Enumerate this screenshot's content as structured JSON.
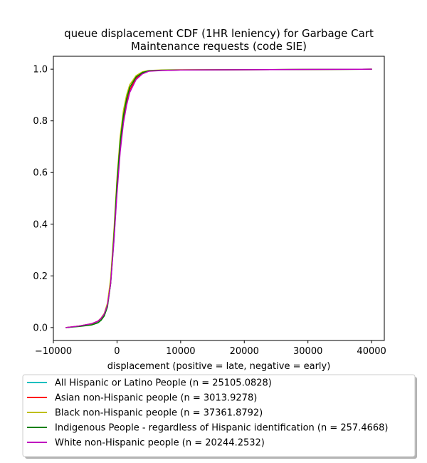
{
  "chart_data": {
    "type": "line",
    "title_lines": [
      "queue displacement CDF (1HR leniency) for Garbage Cart",
      "Maintenance  requests (code SIE)"
    ],
    "xlabel": "displacement (positive = late, negative = early)",
    "ylabel": "",
    "xlim": [
      -10000,
      42000
    ],
    "ylim": [
      -0.05,
      1.05
    ],
    "xticks": [
      -10000,
      0,
      10000,
      20000,
      30000,
      40000
    ],
    "xtick_labels": [
      "−10000",
      "0",
      "10000",
      "20000",
      "30000",
      "40000"
    ],
    "yticks": [
      0.0,
      0.2,
      0.4,
      0.6,
      0.8,
      1.0
    ],
    "ytick_labels": [
      "0.0",
      "0.2",
      "0.4",
      "0.6",
      "0.8",
      "1.0"
    ],
    "grid": false,
    "legend_position": "below plot",
    "series": [
      {
        "name": "All Hispanic or Latino People (n = 25105.0828)",
        "color": "#00bfbf",
        "x": [
          -8000,
          -6000,
          -4000,
          -3000,
          -2500,
          -2000,
          -1500,
          -1000,
          -500,
          0,
          500,
          1000,
          1500,
          2000,
          3000,
          4000,
          5000,
          7000,
          10000,
          20000,
          30000,
          40000
        ],
        "y": [
          0.0,
          0.005,
          0.012,
          0.022,
          0.033,
          0.05,
          0.085,
          0.17,
          0.33,
          0.53,
          0.69,
          0.8,
          0.87,
          0.92,
          0.965,
          0.985,
          0.993,
          0.996,
          0.997,
          0.998,
          0.999,
          1.0
        ]
      },
      {
        "name": "Asian non-Hispanic people (n = 3013.9278)",
        "color": "#ff0000",
        "x": [
          -8000,
          -6000,
          -4000,
          -3000,
          -2500,
          -2000,
          -1500,
          -1000,
          -500,
          0,
          500,
          1000,
          1500,
          2000,
          3000,
          4000,
          5000,
          7000,
          10000,
          20000,
          30000,
          40000
        ],
        "y": [
          0.0,
          0.006,
          0.014,
          0.024,
          0.035,
          0.052,
          0.088,
          0.175,
          0.34,
          0.54,
          0.7,
          0.81,
          0.875,
          0.92,
          0.965,
          0.985,
          0.993,
          0.996,
          0.997,
          0.998,
          0.999,
          1.0
        ]
      },
      {
        "name": "Black non-Hispanic people (n = 37361.8792)",
        "color": "#bfbf00",
        "x": [
          -8000,
          -6000,
          -4000,
          -3000,
          -2500,
          -2000,
          -1500,
          -1000,
          -500,
          0,
          500,
          1000,
          1500,
          2000,
          3000,
          4000,
          5000,
          7000,
          10000,
          20000,
          30000,
          40000
        ],
        "y": [
          0.0,
          0.006,
          0.015,
          0.025,
          0.037,
          0.055,
          0.095,
          0.19,
          0.37,
          0.58,
          0.74,
          0.84,
          0.9,
          0.94,
          0.975,
          0.99,
          0.995,
          0.997,
          0.998,
          0.998,
          0.999,
          1.0
        ]
      },
      {
        "name": "Indigenous People - regardless of Hispanic identification (n = 257.4668)",
        "color": "#008000",
        "x": [
          -8000,
          -6000,
          -4000,
          -3000,
          -2500,
          -2000,
          -1500,
          -1000,
          -500,
          0,
          500,
          1000,
          1500,
          2000,
          3000,
          4000,
          5000,
          7000,
          10000,
          20000,
          30000,
          40000
        ],
        "y": [
          0.0,
          0.004,
          0.01,
          0.018,
          0.028,
          0.045,
          0.08,
          0.17,
          0.35,
          0.56,
          0.72,
          0.82,
          0.885,
          0.93,
          0.97,
          0.987,
          0.994,
          0.996,
          0.997,
          0.998,
          0.999,
          1.0
        ]
      },
      {
        "name": "White non-Hispanic people (n = 20244.2532)",
        "color": "#bf00bf",
        "x": [
          -8000,
          -6000,
          -4000,
          -3000,
          -2500,
          -2000,
          -1500,
          -1000,
          -500,
          0,
          500,
          1000,
          1500,
          2000,
          3000,
          4000,
          5000,
          7000,
          10000,
          20000,
          30000,
          40000
        ],
        "y": [
          0.0,
          0.006,
          0.015,
          0.025,
          0.036,
          0.053,
          0.088,
          0.17,
          0.33,
          0.52,
          0.68,
          0.79,
          0.86,
          0.91,
          0.96,
          0.982,
          0.992,
          0.995,
          0.997,
          0.998,
          0.999,
          1.0
        ]
      }
    ]
  }
}
